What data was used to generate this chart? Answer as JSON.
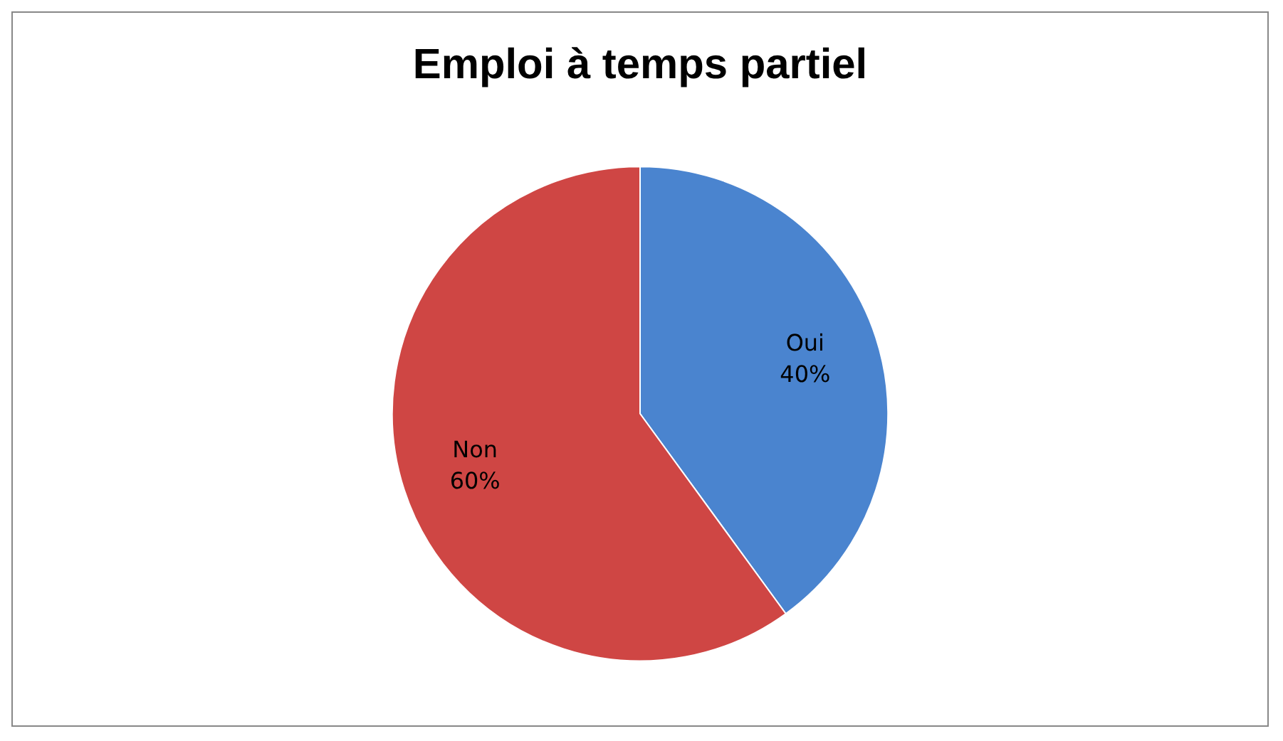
{
  "chart_data": {
    "type": "pie",
    "title": "Emploi à temps partiel",
    "categories": [
      "Oui",
      "Non"
    ],
    "values": [
      40,
      60
    ],
    "colors": [
      "#4a84cf",
      "#cf4644"
    ],
    "value_labels": [
      "40%",
      "60%"
    ],
    "legend": false
  }
}
